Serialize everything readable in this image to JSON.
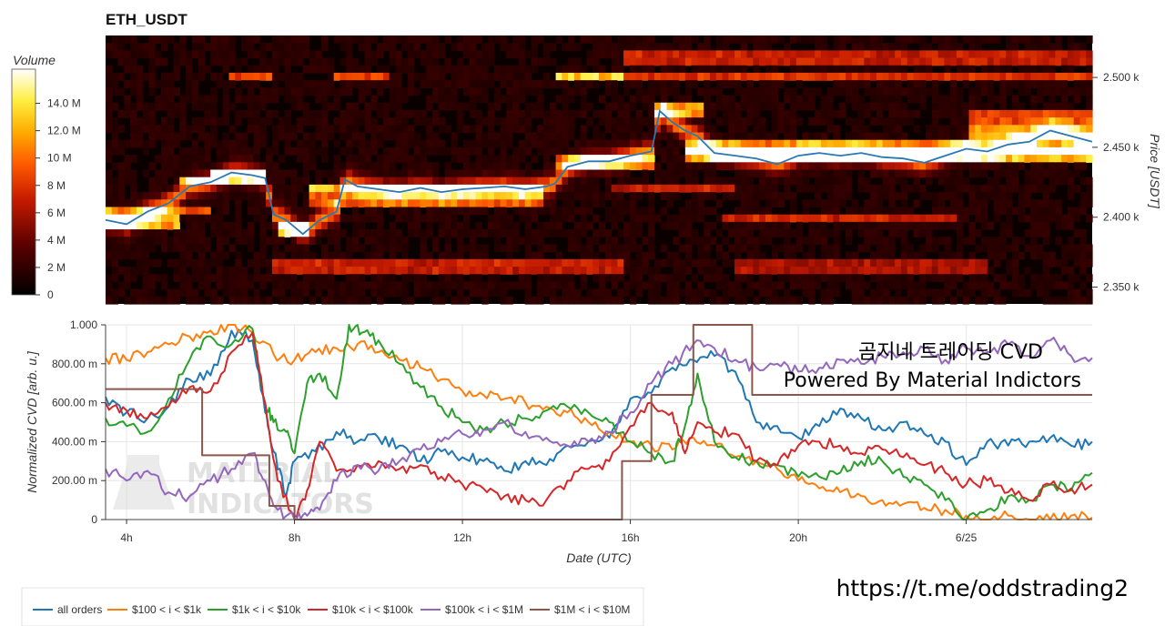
{
  "chart_data": [
    {
      "type": "heatmap",
      "title": "ETH_USDT",
      "ylabel": "Price [USDT]",
      "ylim": [
        2338,
        2530
      ],
      "y_ticks": [
        "2.350 k",
        "2.400 k",
        "2.450 k",
        "2.500 k"
      ],
      "y_tick_values": [
        2350,
        2400,
        2450,
        2500
      ],
      "colorbar": {
        "label": "Volume",
        "ticks": [
          "0",
          "2 M",
          "4 M",
          "6 M",
          "8 M",
          "10 M",
          "12.0 M",
          "14.0 M"
        ],
        "tick_values": [
          0,
          2,
          4,
          6,
          8,
          10,
          12,
          14
        ],
        "max": 16.5,
        "unit": "M"
      },
      "price_line_color": "#2a78b4",
      "price_line": {
        "hours": [
          3.5,
          4.0,
          4.5,
          5.0,
          5.5,
          6.0,
          6.5,
          7.0,
          7.3,
          7.5,
          7.8,
          8.2,
          8.6,
          9.0,
          9.2,
          9.5,
          10.0,
          10.5,
          11.0,
          11.5,
          12.0,
          12.5,
          13.0,
          13.5,
          14.0,
          14.2,
          14.5,
          15.0,
          15.5,
          16.0,
          16.5,
          16.7,
          17.0,
          17.3,
          17.6,
          18.0,
          18.5,
          19.0,
          19.5,
          20.0,
          20.5,
          21.0,
          21.5,
          22.0,
          22.5,
          23.0,
          23.5,
          24.0,
          24.5,
          25.0,
          25.5,
          26.0,
          26.5,
          27.0
        ],
        "prices": [
          2398,
          2395,
          2404,
          2410,
          2422,
          2425,
          2432,
          2430,
          2428,
          2402,
          2398,
          2388,
          2398,
          2404,
          2427,
          2422,
          2420,
          2418,
          2421,
          2418,
          2420,
          2421,
          2422,
          2420,
          2422,
          2424,
          2436,
          2440,
          2440,
          2444,
          2447,
          2476,
          2468,
          2462,
          2458,
          2446,
          2444,
          2442,
          2438,
          2444,
          2446,
          2444,
          2446,
          2443,
          2442,
          2439,
          2444,
          2449,
          2447,
          2452,
          2454,
          2462,
          2458,
          2454
        ]
      },
      "heat_bands": [
        {
          "center": 2398,
          "hours": [
            3.5,
            5.2
          ],
          "volume": 11
        },
        {
          "center": 2405,
          "hours": [
            3.5,
            6.0
          ],
          "volume": 8
        },
        {
          "center": 2425,
          "hours": [
            5.2,
            7.3
          ],
          "volume": 9
        },
        {
          "center": 2432,
          "hours": [
            6.0,
            7.3
          ],
          "volume": 14
        },
        {
          "center": 2390,
          "hours": [
            7.6,
            8.3
          ],
          "volume": 12
        },
        {
          "center": 2420,
          "hours": [
            8.3,
            14.0
          ],
          "volume": 12
        },
        {
          "center": 2412,
          "hours": [
            8.3,
            14.0
          ],
          "volume": 8
        },
        {
          "center": 2365,
          "hours": [
            7.5,
            15.8
          ],
          "volume": 6
        },
        {
          "center": 2500,
          "hours": [
            6.5,
            7.5
          ],
          "volume": 8
        },
        {
          "center": 2500,
          "hours": [
            9.0,
            10.2
          ],
          "volume": 8
        },
        {
          "center": 2500,
          "hours": [
            14.2,
            15.8
          ],
          "volume": 13
        },
        {
          "center": 2500,
          "hours": [
            15.8,
            27.0
          ],
          "volume": 7
        },
        {
          "center": 2515,
          "hours": [
            15.8,
            27.0
          ],
          "volume": 6
        },
        {
          "center": 2440,
          "hours": [
            14.2,
            16.5
          ],
          "volume": 8
        },
        {
          "center": 2476,
          "hours": [
            16.5,
            17.8
          ],
          "volume": 11
        },
        {
          "center": 2450,
          "hours": [
            17.3,
            27.0
          ],
          "volume": 9
        },
        {
          "center": 2444,
          "hours": [
            17.3,
            27.0
          ],
          "volume": 11
        },
        {
          "center": 2420,
          "hours": [
            15.5,
            18.5
          ],
          "volume": 6
        },
        {
          "center": 2400,
          "hours": [
            18.2,
            23.8
          ],
          "volume": 6
        },
        {
          "center": 2365,
          "hours": [
            18.5,
            24.5
          ],
          "volume": 5
        },
        {
          "center": 2470,
          "hours": [
            24.0,
            27.0
          ],
          "volume": 8
        },
        {
          "center": 2460,
          "hours": [
            24.0,
            27.0
          ],
          "volume": 10
        }
      ]
    },
    {
      "type": "line",
      "xlabel": "Date (UTC)",
      "ylabel": "Normalized CVD [arb. u.]",
      "ylim": [
        0,
        1
      ],
      "xlim": [
        3.5,
        27.0
      ],
      "x_ticks": [
        "4h",
        "8h",
        "12h",
        "16h",
        "20h",
        "6/25"
      ],
      "x_tick_values": [
        4,
        8,
        12,
        16,
        20,
        24
      ],
      "y_ticks": [
        "0",
        "200.00 m",
        "400.00 m",
        "600.00 m",
        "800.00 m",
        "1.000"
      ],
      "y_tick_values": [
        0,
        0.2,
        0.4,
        0.6,
        0.8,
        1.0
      ],
      "series": [
        {
          "name": "all orders",
          "color": "#1f77b4",
          "x": [
            3.5,
            4.0,
            4.5,
            5.0,
            5.5,
            6.0,
            6.5,
            7.0,
            7.3,
            7.5,
            7.8,
            8.0,
            8.5,
            9.0,
            9.5,
            10.0,
            10.5,
            11.0,
            11.5,
            12.0,
            12.5,
            13.0,
            13.5,
            14.0,
            14.5,
            15.0,
            15.5,
            16.0,
            16.5,
            17.0,
            17.5,
            18.0,
            18.5,
            19.0,
            19.5,
            20.0,
            20.5,
            21.0,
            21.5,
            22.0,
            22.5,
            23.0,
            23.5,
            24.0,
            24.5,
            25.0,
            25.5,
            26.0,
            26.5,
            27.0
          ],
          "y": [
            0.63,
            0.55,
            0.52,
            0.58,
            0.72,
            0.74,
            0.97,
            0.92,
            0.55,
            0.35,
            0.12,
            0.3,
            0.35,
            0.45,
            0.4,
            0.42,
            0.38,
            0.3,
            0.35,
            0.32,
            0.3,
            0.25,
            0.3,
            0.28,
            0.38,
            0.4,
            0.42,
            0.62,
            0.65,
            0.78,
            0.82,
            0.84,
            0.76,
            0.5,
            0.48,
            0.42,
            0.48,
            0.57,
            0.52,
            0.46,
            0.5,
            0.44,
            0.4,
            0.28,
            0.4,
            0.38,
            0.4,
            0.42,
            0.38,
            0.4
          ]
        },
        {
          "name": "$100 < i < $1k",
          "color": "#ff7f0e",
          "x": [
            3.5,
            4.0,
            4.5,
            5.0,
            5.5,
            6.0,
            6.5,
            7.0,
            7.5,
            8.0,
            8.5,
            9.0,
            9.5,
            10.0,
            10.5,
            11.0,
            11.5,
            12.0,
            12.5,
            13.0,
            13.5,
            14.0,
            14.5,
            15.0,
            15.5,
            16.0,
            16.5,
            17.0,
            17.5,
            18.0,
            18.5,
            19.0,
            19.5,
            20.0,
            20.5,
            21.0,
            21.5,
            22.0,
            22.5,
            23.0,
            23.5,
            24.0,
            24.5,
            25.0,
            25.5,
            26.0,
            26.5,
            27.0
          ],
          "y": [
            0.83,
            0.82,
            0.86,
            0.9,
            0.94,
            0.97,
            1.0,
            0.96,
            0.85,
            0.82,
            0.86,
            0.88,
            0.9,
            0.86,
            0.82,
            0.78,
            0.72,
            0.66,
            0.64,
            0.62,
            0.6,
            0.58,
            0.55,
            0.5,
            0.45,
            0.4,
            0.38,
            0.36,
            0.42,
            0.38,
            0.32,
            0.3,
            0.26,
            0.2,
            0.16,
            0.14,
            0.12,
            0.1,
            0.08,
            0.06,
            0.05,
            0.02,
            0.0,
            0.02,
            0.0,
            0.0,
            0.02,
            0.01
          ]
        },
        {
          "name": "$1k < i < $10k",
          "color": "#2ca02c",
          "x": [
            3.5,
            4.0,
            4.5,
            5.0,
            5.5,
            6.0,
            6.5,
            7.0,
            7.3,
            7.5,
            7.8,
            8.0,
            8.3,
            8.6,
            9.0,
            9.3,
            9.6,
            10.0,
            10.5,
            11.0,
            11.5,
            12.0,
            12.5,
            13.0,
            13.5,
            14.0,
            14.5,
            15.0,
            15.5,
            16.0,
            16.5,
            17.0,
            17.3,
            17.6,
            18.0,
            18.5,
            19.0,
            19.5,
            20.0,
            20.5,
            21.0,
            21.5,
            22.0,
            22.5,
            23.0,
            23.5,
            24.0,
            24.5,
            25.0,
            25.5,
            26.0,
            26.5,
            27.0
          ],
          "y": [
            0.52,
            0.48,
            0.45,
            0.62,
            0.82,
            0.94,
            0.9,
            0.98,
            0.6,
            0.5,
            0.45,
            0.34,
            0.7,
            0.75,
            0.62,
            1.0,
            0.96,
            0.92,
            0.8,
            0.68,
            0.58,
            0.5,
            0.46,
            0.5,
            0.52,
            0.56,
            0.58,
            0.55,
            0.5,
            0.4,
            0.34,
            0.3,
            0.48,
            0.75,
            0.4,
            0.32,
            0.3,
            0.28,
            0.22,
            0.22,
            0.24,
            0.3,
            0.3,
            0.22,
            0.18,
            0.1,
            0.0,
            0.05,
            0.12,
            0.1,
            0.18,
            0.15,
            0.24
          ]
        },
        {
          "name": "$10k < i < $100k",
          "color": "#d62728",
          "x": [
            3.5,
            4.0,
            4.5,
            5.0,
            5.5,
            6.0,
            6.5,
            7.0,
            7.3,
            7.6,
            8.0,
            8.3,
            8.6,
            9.0,
            9.5,
            10.0,
            10.5,
            11.0,
            11.5,
            12.0,
            12.5,
            13.0,
            13.5,
            14.0,
            14.5,
            15.0,
            15.5,
            16.0,
            16.5,
            17.0,
            17.3,
            17.6,
            18.0,
            18.5,
            19.0,
            19.5,
            20.0,
            20.5,
            21.0,
            21.5,
            22.0,
            22.5,
            23.0,
            23.5,
            24.0,
            24.5,
            25.0,
            25.5,
            26.0,
            26.5,
            27.0
          ],
          "y": [
            0.6,
            0.56,
            0.52,
            0.58,
            0.68,
            0.66,
            0.86,
            0.96,
            0.6,
            0.2,
            0.02,
            0.15,
            0.4,
            0.25,
            0.28,
            0.3,
            0.26,
            0.28,
            0.22,
            0.18,
            0.16,
            0.12,
            0.1,
            0.1,
            0.2,
            0.26,
            0.3,
            0.48,
            0.6,
            0.55,
            0.34,
            0.5,
            0.45,
            0.44,
            0.3,
            0.28,
            0.38,
            0.4,
            0.38,
            0.34,
            0.36,
            0.32,
            0.28,
            0.24,
            0.18,
            0.2,
            0.14,
            0.1,
            0.18,
            0.16,
            0.18
          ]
        },
        {
          "name": "$100k < i < $1M",
          "color": "#9467bd",
          "x": [
            3.5,
            4.0,
            4.5,
            5.0,
            5.5,
            6.0,
            6.5,
            7.0,
            7.3,
            7.6,
            8.0,
            8.3,
            8.6,
            9.0,
            9.5,
            10.0,
            10.5,
            11.0,
            11.5,
            12.0,
            12.5,
            13.0,
            13.5,
            14.0,
            14.5,
            15.0,
            15.5,
            16.0,
            16.5,
            17.0,
            17.5,
            18.0,
            18.5,
            19.0,
            19.5,
            20.0,
            20.5,
            21.0,
            21.5,
            22.0,
            22.5,
            23.0,
            23.5,
            24.0,
            24.5,
            25.0,
            25.5,
            26.0,
            26.5,
            27.0
          ],
          "y": [
            0.26,
            0.2,
            0.25,
            0.14,
            0.12,
            0.2,
            0.26,
            0.34,
            0.2,
            0.05,
            0.0,
            0.02,
            0.05,
            0.2,
            0.28,
            0.25,
            0.3,
            0.36,
            0.4,
            0.44,
            0.46,
            0.5,
            0.45,
            0.42,
            0.38,
            0.4,
            0.45,
            0.55,
            0.7,
            0.8,
            0.9,
            0.88,
            0.82,
            0.78,
            0.8,
            0.76,
            0.78,
            0.82,
            0.8,
            0.84,
            0.86,
            0.88,
            0.82,
            0.88,
            0.86,
            0.9,
            0.84,
            0.92,
            0.84,
            0.83
          ]
        },
        {
          "name": "$1M < i < $10M",
          "color": "#8c564b",
          "step": true,
          "x": [
            3.5,
            5.8,
            5.8,
            7.4,
            7.4,
            8.0,
            8.0,
            15.8,
            15.8,
            16.5,
            16.5,
            17.5,
            17.5,
            18.9,
            18.9,
            27.0
          ],
          "y": [
            0.67,
            0.67,
            0.33,
            0.33,
            0.07,
            0.07,
            0.0,
            0.0,
            0.3,
            0.3,
            0.64,
            0.64,
            1.0,
            1.0,
            0.64,
            0.64
          ]
        }
      ],
      "annotations": [
        "곰지네 트레이딩 CVD",
        "Powered By Material Indictors"
      ],
      "watermark": [
        "MATERIAL",
        "INDICATORS"
      ],
      "legend_position": "bottom-left"
    }
  ],
  "footer": {
    "url_text": "https://t.me/oddstrading2"
  }
}
